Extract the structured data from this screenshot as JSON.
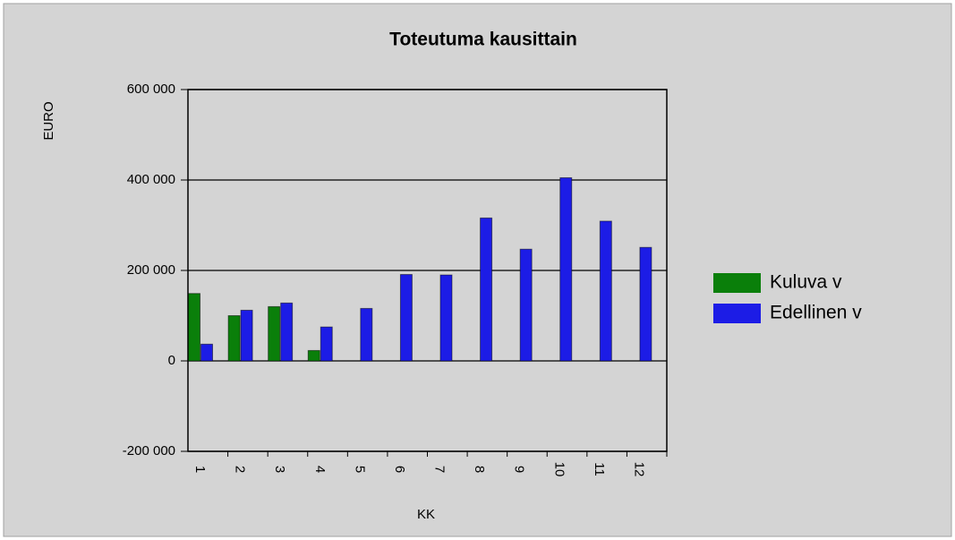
{
  "chart_data": {
    "type": "bar",
    "title": "Toteutuma kausittain",
    "y_label": "EURO",
    "x_label": "KK",
    "categories": [
      "1",
      "2",
      "3",
      "4",
      "5",
      "6",
      "7",
      "8",
      "9",
      "10",
      "11",
      "12"
    ],
    "series": [
      {
        "name": "Kuluva v",
        "color": "#0a7f0a",
        "values": [
          149000,
          100000,
          120000,
          23000,
          null,
          null,
          null,
          null,
          null,
          null,
          null,
          null
        ]
      },
      {
        "name": "Edellinen v",
        "color": "#1c1ce6",
        "values": [
          37000,
          112000,
          128000,
          75000,
          116000,
          191000,
          190000,
          316000,
          247000,
          405000,
          309000,
          251000
        ]
      }
    ],
    "ylim": [
      -200000,
      600000
    ],
    "yticks": [
      {
        "value": -200000,
        "label": "-200 000"
      },
      0,
      {
        "value": 200000,
        "label": "200 000"
      },
      {
        "value": 400000,
        "label": "400 000"
      },
      {
        "value": 600000,
        "label": "600 000"
      }
    ],
    "grid": true,
    "legend": "right"
  }
}
